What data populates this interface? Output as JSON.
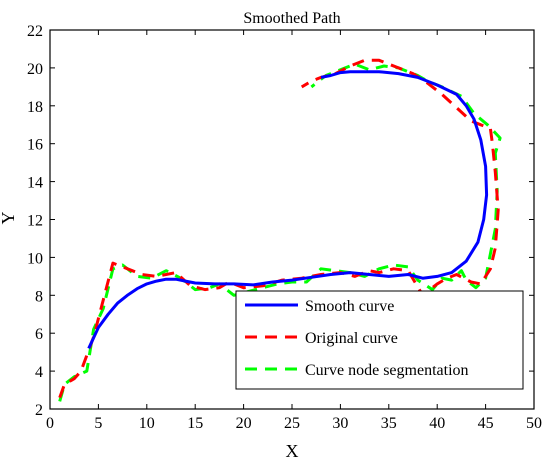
{
  "chart_data": {
    "type": "line",
    "title": "Smoothed Path",
    "xlabel": "X",
    "ylabel": "Y",
    "xlim": [
      0,
      50
    ],
    "ylim": [
      2,
      22
    ],
    "xticks": [
      0,
      5,
      10,
      15,
      20,
      25,
      30,
      35,
      40,
      45,
      50
    ],
    "yticks": [
      2,
      4,
      6,
      8,
      10,
      12,
      14,
      16,
      18,
      20,
      22
    ],
    "grid": false,
    "legend_position": "bottom-right",
    "series": [
      {
        "name": "Smooth curve",
        "color": "#0000ff",
        "style": "solid",
        "points": [
          [
            4,
            5.2
          ],
          [
            5,
            6.3
          ],
          [
            6,
            7.0
          ],
          [
            7,
            7.6
          ],
          [
            8,
            8.0
          ],
          [
            9,
            8.35
          ],
          [
            10,
            8.6
          ],
          [
            11,
            8.75
          ],
          [
            12,
            8.85
          ],
          [
            13,
            8.85
          ],
          [
            14,
            8.75
          ],
          [
            15,
            8.65
          ],
          [
            17,
            8.6
          ],
          [
            19,
            8.6
          ],
          [
            21,
            8.55
          ],
          [
            23,
            8.7
          ],
          [
            25,
            8.8
          ],
          [
            27,
            8.95
          ],
          [
            29,
            9.1
          ],
          [
            31,
            9.2
          ],
          [
            33,
            9.1
          ],
          [
            35,
            9.0
          ],
          [
            37,
            9.1
          ],
          [
            38.5,
            8.9
          ],
          [
            40,
            9.0
          ],
          [
            41.5,
            9.2
          ],
          [
            43,
            9.8
          ],
          [
            44.2,
            10.8
          ],
          [
            44.8,
            12.0
          ],
          [
            45.1,
            13.3
          ],
          [
            45,
            14.8
          ],
          [
            44.5,
            16.2
          ],
          [
            43.8,
            17.3
          ],
          [
            43,
            18.0
          ],
          [
            42,
            18.6
          ],
          [
            40,
            19.1
          ],
          [
            38,
            19.5
          ],
          [
            36,
            19.7
          ],
          [
            34,
            19.8
          ],
          [
            32,
            19.8
          ],
          [
            31,
            19.8
          ],
          [
            30,
            19.75
          ],
          [
            29,
            19.6
          ],
          [
            28,
            19.5
          ]
        ]
      },
      {
        "name": "Original curve",
        "color": "#ff0000",
        "style": "dashed",
        "points": [
          [
            1,
            2.6
          ],
          [
            1.5,
            3.3
          ],
          [
            2.5,
            3.6
          ],
          [
            3.2,
            4.0
          ],
          [
            4.5,
            5.8
          ],
          [
            6.5,
            9.7
          ],
          [
            7.5,
            9.5
          ],
          [
            8.5,
            9.3
          ],
          [
            9.5,
            9.1
          ],
          [
            11,
            9.0
          ],
          [
            13,
            9.2
          ],
          [
            14.5,
            8.5
          ],
          [
            16,
            8.3
          ],
          [
            17.5,
            8.4
          ],
          [
            18.5,
            8.7
          ],
          [
            20,
            8.4
          ],
          [
            22,
            8.5
          ],
          [
            24,
            8.8
          ],
          [
            26,
            8.9
          ],
          [
            28,
            9.1
          ],
          [
            30,
            9.2
          ],
          [
            31.5,
            9.0
          ],
          [
            33,
            9.3
          ],
          [
            34,
            9.2
          ],
          [
            35.5,
            9.4
          ],
          [
            37,
            9.3
          ],
          [
            38.5,
            8.0
          ],
          [
            40,
            8.6
          ],
          [
            41,
            8.9
          ],
          [
            42,
            9.1
          ],
          [
            43.5,
            8.7
          ],
          [
            44.5,
            8.6
          ],
          [
            45.5,
            9.4
          ],
          [
            46,
            10.5
          ],
          [
            46.3,
            12.5
          ],
          [
            46,
            14.5
          ],
          [
            45.7,
            16.0
          ],
          [
            45.5,
            16.8
          ],
          [
            44.5,
            17.0
          ],
          [
            43.5,
            17.2
          ],
          [
            42,
            17.9
          ],
          [
            40.5,
            18.6
          ],
          [
            39,
            19.2
          ],
          [
            37.5,
            19.7
          ],
          [
            36,
            20.0
          ],
          [
            34,
            20.4
          ],
          [
            32.5,
            20.4
          ],
          [
            31,
            20.1
          ],
          [
            29.5,
            19.7
          ],
          [
            28,
            19.5
          ],
          [
            27,
            19.3
          ],
          [
            26,
            19.0
          ]
        ]
      },
      {
        "name": "Curve node segmentation",
        "color": "#00ff00",
        "style": "dashed",
        "points": [
          [
            1,
            2.4
          ],
          [
            1.5,
            3.3
          ],
          [
            2.5,
            3.7
          ],
          [
            3.8,
            4.0
          ],
          [
            4.5,
            6.2
          ],
          [
            5.5,
            7.3
          ],
          [
            6.5,
            9.4
          ],
          [
            7.5,
            9.6
          ],
          [
            9,
            9.0
          ],
          [
            10.5,
            8.9
          ],
          [
            12,
            9.3
          ],
          [
            13.5,
            8.9
          ],
          [
            15,
            8.3
          ],
          [
            16.5,
            8.4
          ],
          [
            17.5,
            8.6
          ],
          [
            19,
            8.0
          ],
          [
            20.5,
            8.2
          ],
          [
            22,
            8.4
          ],
          [
            23.5,
            8.6
          ],
          [
            25,
            8.7
          ],
          [
            26.5,
            8.7
          ],
          [
            28,
            9.4
          ],
          [
            29.5,
            9.3
          ],
          [
            31,
            9.2
          ],
          [
            32.5,
            9.0
          ],
          [
            34,
            9.4
          ],
          [
            35.5,
            9.6
          ],
          [
            37,
            9.5
          ],
          [
            38,
            8.8
          ],
          [
            39.5,
            8.3
          ],
          [
            40.5,
            8.9
          ],
          [
            41.5,
            8.8
          ],
          [
            42.5,
            9.3
          ],
          [
            43,
            8.8
          ],
          [
            44,
            8.4
          ],
          [
            45,
            8.9
          ],
          [
            46,
            11.5
          ],
          [
            46.2,
            13.5
          ],
          [
            46,
            15.5
          ],
          [
            46.5,
            16.3
          ],
          [
            45.2,
            17.0
          ],
          [
            43.8,
            17.6
          ],
          [
            42.5,
            18.5
          ],
          [
            40.5,
            19.0
          ],
          [
            39,
            19.3
          ],
          [
            38,
            19.6
          ],
          [
            36,
            20.0
          ],
          [
            34.5,
            20.1
          ],
          [
            33,
            19.9
          ],
          [
            31.5,
            20.2
          ],
          [
            30,
            19.9
          ],
          [
            28.5,
            19.6
          ],
          [
            27,
            19.0
          ]
        ]
      }
    ]
  }
}
